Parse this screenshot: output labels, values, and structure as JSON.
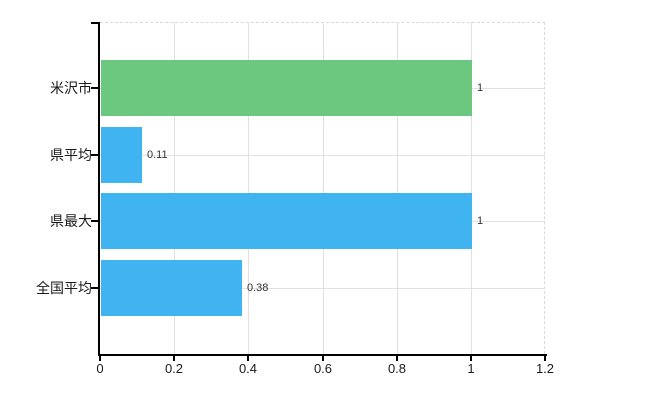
{
  "chart_data": {
    "type": "bar",
    "orientation": "horizontal",
    "title": "",
    "categories": [
      "米沢市",
      "県平均",
      "県最大",
      "全国平均"
    ],
    "values": [
      1,
      0.11,
      1,
      0.38
    ],
    "value_labels": [
      "1",
      "0.11",
      "1",
      "0.38"
    ],
    "bar_colors": [
      "#6cc87e",
      "#3fb4f0",
      "#3fb4f0",
      "#3fb4f0"
    ],
    "xlim": [
      0,
      1.2
    ],
    "x_ticks": [
      0,
      0.2,
      0.4,
      0.6,
      0.8,
      1,
      1.2
    ],
    "x_tick_labels": [
      "0",
      "0.2",
      "0.4",
      "0.6",
      "0.8",
      "1",
      "1.2"
    ],
    "grid": true,
    "legend": false,
    "colors": {
      "green_bar": "#6cc87e",
      "blue_bar": "#3fb4f0",
      "gridline": "#e0e0e0",
      "dashed_border": "#d9d9d9",
      "axis": "#000000",
      "tick_label_text": "#1a1a1a",
      "value_label_text": "#333333",
      "background": "#ffffff"
    }
  }
}
